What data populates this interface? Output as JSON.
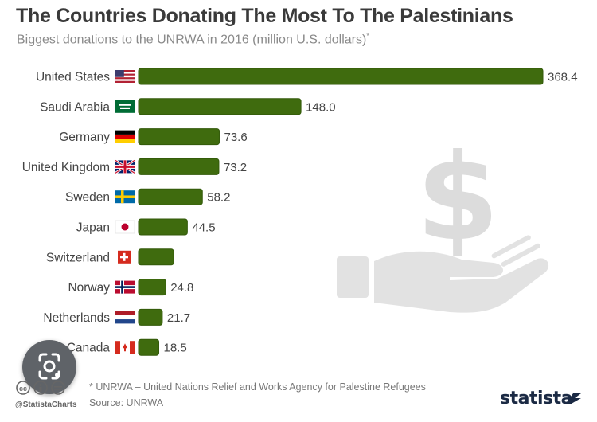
{
  "header": {
    "title": "The Countries Donating The Most To The Palestinians",
    "subtitle": "Biggest donations to the UNRWA in 2016 (million U.S. dollars)",
    "subtitle_mark": "*"
  },
  "footer": {
    "footnote": "* UNRWA – United Nations Relief and Works Agency for Palestine Refugees",
    "source": "Source: UNRWA",
    "handle": "@StatistaCharts",
    "logo": "statista"
  },
  "colors": {
    "bar": "#3f6b0e",
    "bar_stroke": "#335a0a",
    "label_text": "#444444",
    "value_text": "#444444"
  },
  "icons": [
    "dollar-sign-icon",
    "open-hand-icon",
    "creative-commons-icon",
    "image-search-icon"
  ],
  "chart_data": {
    "type": "bar",
    "orientation": "horizontal",
    "categories": [
      "United States",
      "Saudi Arabia",
      "Germany",
      "United Kingdom",
      "Sweden",
      "Japan",
      "Switzerland",
      "Norway",
      "Netherlands",
      "Canada"
    ],
    "values": [
      368.4,
      148.0,
      73.6,
      73.2,
      58.2,
      44.5,
      32.0,
      24.8,
      21.7,
      18.5
    ],
    "value_labels": [
      "368.4",
      "148.0",
      "73.6",
      "73.2",
      "58.2",
      "44.5",
      "",
      "24.8",
      "21.7",
      "18.5"
    ],
    "title": "The Countries Donating The Most To The Palestinians",
    "subtitle": "Biggest donations to the UNRWA in 2016 (million U.S. dollars)",
    "xlabel": "",
    "ylabel": "",
    "grid": false,
    "legend": "none"
  }
}
